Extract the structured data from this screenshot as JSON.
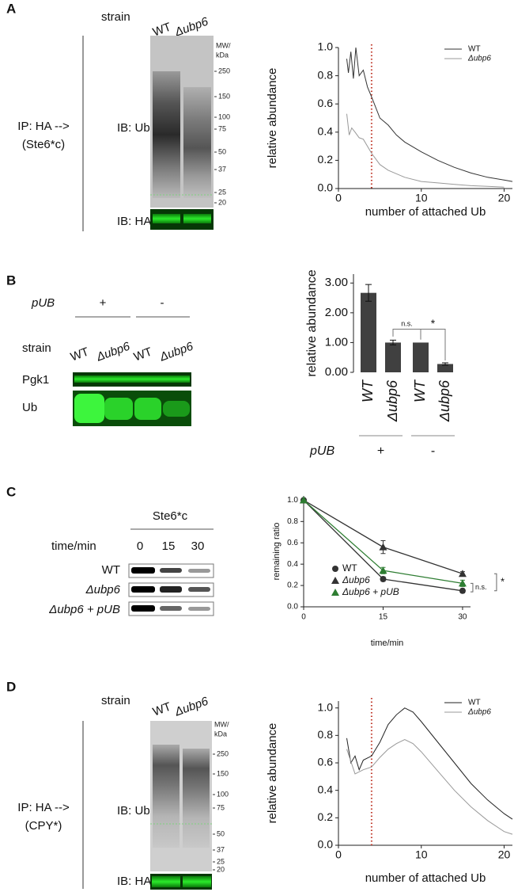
{
  "panels": [
    {
      "letter": "A",
      "strain": "strain",
      "lanes": [
        "WT",
        "Δubp6"
      ],
      "mw_header": [
        "MW/",
        "kDa"
      ],
      "mw_markers": [
        "250",
        "150",
        "100",
        "75",
        "50",
        "37",
        "25",
        "20"
      ],
      "ip": [
        "IP: HA -->",
        "(Ste6*c)"
      ],
      "blots": [
        "IB: Ub",
        "IB: HA"
      ]
    },
    {
      "letter": "B",
      "pub": "pUB",
      "pub_states": [
        "+",
        "-"
      ],
      "strain": "strain",
      "lanes": [
        "WT",
        "Δubp6",
        "WT",
        "Δubp6"
      ],
      "blots": [
        "Pgk1",
        "Ub"
      ]
    },
    {
      "letter": "C",
      "protein": "Ste6*c",
      "time_label": "time/min",
      "times": [
        "0",
        "15",
        "30"
      ],
      "rows": [
        "WT",
        "Δubp6",
        "Δubp6 + pUB"
      ]
    },
    {
      "letter": "D",
      "strain": "strain",
      "lanes": [
        "WT",
        "Δubp6"
      ],
      "mw_header": [
        "MW/",
        "kDa"
      ],
      "mw_markers": [
        "250",
        "150",
        "100",
        "75",
        "50",
        "37",
        "25",
        "20"
      ],
      "ip": [
        "IP: HA -->",
        "(CPY*)"
      ],
      "blots": [
        "IB: Ub",
        "IB: HA"
      ]
    }
  ],
  "chart_data": [
    {
      "type": "line",
      "ylabel": "relative abundance",
      "xlabel": "number of attached Ub",
      "xlim": [
        0,
        21
      ],
      "ylim": [
        0,
        1
      ],
      "xticks": [
        0,
        10,
        20
      ],
      "yticks": [
        {
          "value": 0,
          "label": "0.0"
        },
        0.2,
        0.4,
        0.6,
        0.8,
        {
          "value": 1,
          "label": "1.0"
        }
      ],
      "reference_x": 4,
      "reference_color": "#c0392b",
      "legend": "upper right",
      "series": [
        {
          "name": "WT",
          "color": "#333333",
          "x": [
            1,
            1.2,
            1.5,
            1.8,
            2.1,
            2.5,
            3,
            3.5,
            4,
            5,
            6,
            7,
            8,
            10,
            12,
            14,
            16,
            18,
            20,
            21
          ],
          "values": [
            0.92,
            0.82,
            0.97,
            0.78,
            1.0,
            0.8,
            0.84,
            0.72,
            0.65,
            0.5,
            0.45,
            0.38,
            0.33,
            0.26,
            0.2,
            0.15,
            0.11,
            0.08,
            0.06,
            0.05
          ]
        },
        {
          "name": "Δubp6",
          "color": "#999999",
          "x": [
            1,
            1.3,
            1.6,
            2,
            2.5,
            3,
            4,
            5,
            6,
            8,
            10,
            12,
            14,
            16,
            18,
            20
          ],
          "values": [
            0.53,
            0.38,
            0.43,
            0.4,
            0.36,
            0.35,
            0.25,
            0.17,
            0.13,
            0.08,
            0.05,
            0.04,
            0.03,
            0.02,
            0.015,
            0.01
          ]
        }
      ]
    },
    {
      "type": "bar",
      "ylabel": "relative abundance",
      "categories": [
        "WT",
        "Δubp6",
        "WT",
        "Δubp6"
      ],
      "values": [
        2.67,
        1.0,
        1.0,
        0.28
      ],
      "errors": [
        0.28,
        0.08,
        0,
        0.04
      ],
      "color": "#404040",
      "ylim": [
        0,
        3.3
      ],
      "yticks": [
        {
          "value": 0,
          "label": "0.00"
        },
        {
          "value": 1,
          "label": "1.00"
        },
        {
          "value": 2,
          "label": "2.00"
        },
        {
          "value": 3,
          "label": "3.00"
        }
      ],
      "group_label": "pUB",
      "groups": [
        "+",
        "-"
      ],
      "annotations": [
        "n.s.",
        "*"
      ]
    },
    {
      "type": "line",
      "ylabel": "remaining ratio",
      "xlabel": "time/min",
      "x": [
        0,
        15,
        30
      ],
      "xlim": [
        0,
        31.5
      ],
      "ylim": [
        0,
        1.04
      ],
      "xticks": [
        0,
        15,
        30
      ],
      "yticks": [
        {
          "value": 0,
          "label": "0.0"
        },
        0.2,
        0.4,
        0.6,
        0.8,
        {
          "value": 1,
          "label": "1.0"
        }
      ],
      "legend": "lower left",
      "annotations": [
        "n.s.",
        "*"
      ],
      "series": [
        {
          "name": "WT",
          "color": "#333333",
          "marker": "circle",
          "values": [
            1,
            0.26,
            0.15
          ],
          "errors": [
            0,
            0.02,
            0.02
          ]
        },
        {
          "name": "Δubp6",
          "color": "#333333",
          "marker": "triangle",
          "values": [
            1,
            0.56,
            0.31
          ],
          "errors": [
            0,
            0.06,
            0.02
          ]
        },
        {
          "name": "Δubp6 + pUB",
          "color": "#2e7d32",
          "marker": "triangle",
          "values": [
            1,
            0.34,
            0.22
          ],
          "errors": [
            0,
            0.03,
            0.03
          ]
        }
      ]
    },
    {
      "type": "line",
      "ylabel": "relative abundance",
      "xlabel": "number of attached Ub",
      "xlim": [
        0,
        21
      ],
      "ylim": [
        0,
        1.05
      ],
      "xticks": [
        0,
        10,
        20
      ],
      "yticks": [
        {
          "value": 0,
          "label": "0.0"
        },
        0.2,
        0.4,
        0.6,
        0.8,
        {
          "value": 1,
          "label": "1.0"
        }
      ],
      "reference_x": 4,
      "reference_color": "#c0392b",
      "legend": "upper right",
      "series": [
        {
          "name": "WT",
          "color": "#222222",
          "x": [
            1,
            1.5,
            2,
            2.5,
            3,
            4,
            5,
            6,
            7,
            8,
            9,
            10,
            12,
            14,
            16,
            18,
            20,
            21
          ],
          "values": [
            0.78,
            0.6,
            0.65,
            0.55,
            0.62,
            0.65,
            0.75,
            0.88,
            0.95,
            1.0,
            0.97,
            0.9,
            0.75,
            0.6,
            0.45,
            0.33,
            0.23,
            0.19
          ]
        },
        {
          "name": "Δubp6",
          "color": "#999999",
          "x": [
            1,
            2,
            3,
            4,
            5,
            6,
            7,
            8,
            9,
            10,
            12,
            14,
            16,
            18,
            20,
            21
          ],
          "values": [
            0.7,
            0.52,
            0.55,
            0.57,
            0.64,
            0.7,
            0.74,
            0.77,
            0.74,
            0.68,
            0.54,
            0.4,
            0.28,
            0.18,
            0.1,
            0.08
          ]
        }
      ]
    }
  ]
}
